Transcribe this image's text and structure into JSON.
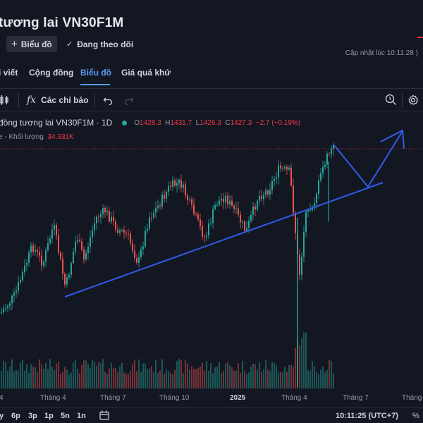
{
  "header": {
    "title": "tương lai VN30F1M",
    "chart_button": "Biểu đồ",
    "follow_button": "Đang theo dõi",
    "updated": "Cập nhật lúc  10:11:28 )"
  },
  "tabs": [
    {
      "label": "i viết"
    },
    {
      "label": "Cộng đồng"
    },
    {
      "label": "Biểu đồ",
      "active": true
    },
    {
      "label": "Giá quá khứ"
    }
  ],
  "toolbar": {
    "indicators": "Các chỉ báo"
  },
  "legend": {
    "symbol": "đồng tương lai VN30F1M · 1D",
    "ohlc_o_label": "O",
    "ohlc_o": "1428.3",
    "ohlc_h_label": "H",
    "ohlc_h": "1431.7",
    "ohlc_l_label": "L",
    "ohlc_l": "1426.3",
    "ohlc_c_label": "C",
    "ohlc_c": "1427.3",
    "change": "−2.7 (−0.19%)",
    "volume_label": "e - Khối lượng",
    "volume_value": "34.331K"
  },
  "time_axis": {
    "ticks": [
      "4",
      "Tháng 4",
      "Tháng 7",
      "Tháng 10",
      "2025",
      "Tháng 4",
      "Tháng 7",
      "Tháng"
    ]
  },
  "bottom_bar": {
    "ranges": [
      "y",
      "6p",
      "3p",
      "1p",
      "5n",
      "1n"
    ],
    "clock": "10:11:25 (UTC+7)",
    "percent": "%"
  },
  "colors": {
    "background": "#131722",
    "up": "#26a69a",
    "down": "#ef5350",
    "accent": "#5b9cf6",
    "drawing": "#2f5bea"
  },
  "chart_data": {
    "type": "candlestick",
    "interval": "1D",
    "x_ticks": [
      "Tháng 4",
      "Tháng 7",
      "Tháng 10",
      "2025",
      "Tháng 4",
      "Tháng 7"
    ],
    "last": {
      "open": 1428.3,
      "high": 1431.7,
      "low": 1426.3,
      "close": 1427.3,
      "change": -2.7,
      "change_pct": -0.19
    },
    "volume": 34331,
    "grid": false
  }
}
